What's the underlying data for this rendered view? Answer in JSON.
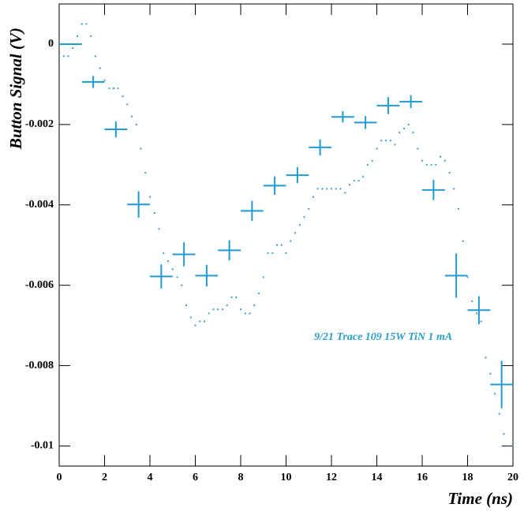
{
  "chart_data": {
    "type": "scatter",
    "xlabel": "Time (ns)",
    "ylabel": "Button Signal (V)",
    "annotation": "9/21 Trace 109 15W TiN 1 mA",
    "xlim": [
      0,
      20
    ],
    "xticks": [
      0,
      2,
      4,
      6,
      8,
      10,
      12,
      14,
      16,
      18,
      20
    ],
    "ylim": [
      -0.0105,
      0.001
    ],
    "yticks": [
      0,
      -0.002,
      -0.004,
      -0.006,
      -0.008,
      -0.01
    ],
    "series": [
      {
        "style": "errorbar",
        "color": "#1f9ad0",
        "x": [
          0.5,
          1.5,
          2.5,
          3.5,
          4.5,
          5.5,
          6.5,
          7.5,
          8.5,
          9.5,
          10.5,
          11.5,
          12.5,
          13.5,
          14.5,
          15.5,
          16.5,
          17.5,
          18.5,
          19.5
        ],
        "values": [
          0,
          -0.00094,
          -0.00212,
          -0.00399,
          -0.00578,
          -0.00523,
          -0.00576,
          -0.00513,
          -0.00415,
          -0.00352,
          -0.00326,
          -0.00257,
          -0.00181,
          -0.00195,
          -0.00153,
          -0.00143,
          -0.00363,
          -0.00576,
          -0.00662,
          -0.00847
        ],
        "xerr": [
          0.5,
          0.5,
          0.5,
          0.5,
          0.5,
          0.5,
          0.5,
          0.5,
          0.5,
          0.5,
          0.5,
          0.5,
          0.5,
          0.5,
          0.5,
          0.5,
          0.5,
          0.5,
          0.5,
          0.5
        ],
        "yerr": [
          0,
          0.00015,
          0.0002,
          0.00033,
          0.0003,
          0.0003,
          0.00027,
          0.00025,
          0.00025,
          0.00023,
          0.0002,
          0.0002,
          0.00014,
          0.00016,
          0.00021,
          0.00016,
          0.00025,
          0.00055,
          0.00035,
          0.00059
        ]
      },
      {
        "style": "dots",
        "color": "#3aa0d0",
        "x": [
          0,
          0.2,
          0.4,
          0.6,
          0.8,
          1,
          1.2,
          1.4,
          1.6,
          1.8,
          2,
          2.2,
          2.4,
          2.6,
          2.8,
          3,
          3.2,
          3.4,
          3.6,
          3.8,
          4,
          4.2,
          4.4,
          4.6,
          4.8,
          5,
          5.2,
          5.4,
          5.6,
          5.8,
          6,
          6.2,
          6.4,
          6.6,
          6.8,
          7,
          7.2,
          7.4,
          7.6,
          7.8,
          8,
          8.2,
          8.4,
          8.6,
          8.8,
          9,
          9.2,
          9.4,
          9.6,
          9.8,
          10,
          10.2,
          10.4,
          10.6,
          10.8,
          11,
          11.2,
          11.4,
          11.6,
          11.8,
          12,
          12.2,
          12.4,
          12.6,
          12.8,
          13,
          13.2,
          13.4,
          13.6,
          13.8,
          14,
          14.2,
          14.4,
          14.6,
          14.8,
          15,
          15.2,
          15.4,
          15.6,
          15.8,
          16,
          16.2,
          16.4,
          16.6,
          16.8,
          17,
          17.2,
          17.4,
          17.6,
          17.8,
          18,
          18.2,
          18.4,
          18.6,
          18.8,
          19,
          19.2,
          19.4,
          19.6,
          19.8,
          20
        ],
        "values": [
          -0.0003,
          -0.0003,
          -0.0003,
          -0.0001,
          0.0002,
          0.0005,
          0.0005,
          0.0002,
          -0.0003,
          -0.0006,
          -0.0009,
          -0.0011,
          -0.0011,
          -0.0011,
          -0.0013,
          -0.0015,
          -0.0018,
          -0.002,
          -0.0026,
          -0.0032,
          -0.0038,
          -0.0042,
          -0.0046,
          -0.0052,
          -0.0054,
          -0.0056,
          -0.0058,
          -0.006,
          -0.0065,
          -0.0068,
          -0.007,
          -0.0069,
          -0.0069,
          -0.0067,
          -0.0066,
          -0.0066,
          -0.0066,
          -0.0065,
          -0.0063,
          -0.0063,
          -0.0066,
          -0.0067,
          -0.0067,
          -0.0065,
          -0.0062,
          -0.0058,
          -0.0052,
          -0.0052,
          -0.005,
          -0.005,
          -0.0052,
          -0.0049,
          -0.0047,
          -0.0045,
          -0.0043,
          -0.0041,
          -0.0038,
          -0.0036,
          -0.0036,
          -0.0036,
          -0.0036,
          -0.0036,
          -0.0036,
          -0.0037,
          -0.0035,
          -0.0034,
          -0.0034,
          -0.0033,
          -0.003,
          -0.0029,
          -0.0026,
          -0.0024,
          -0.0024,
          -0.0024,
          -0.0025,
          -0.0022,
          -0.0021,
          -0.002,
          -0.0022,
          -0.0026,
          -0.0029,
          -0.003,
          -0.003,
          -0.003,
          -0.0028,
          -0.0029,
          -0.0032,
          -0.0036,
          -0.0041,
          -0.0049,
          -0.0058,
          -0.0064,
          -0.0067,
          -0.0069,
          -0.0078,
          -0.0082,
          -0.0087,
          -0.0092,
          -0.0097,
          -0.01,
          -0.01
        ]
      }
    ]
  }
}
